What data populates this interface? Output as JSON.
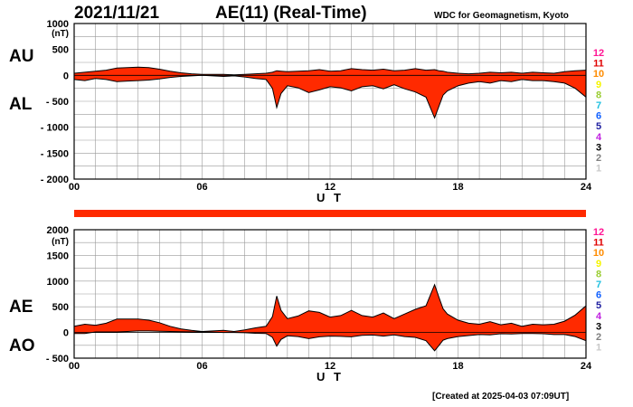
{
  "header": {
    "date": "2021/11/21",
    "title": "AE(11) (Real-Time)",
    "org": "WDC for Geomagnetism, Kyoto"
  },
  "footer": {
    "created": "[Created at 2025-04-03 07:09UT]"
  },
  "colors": {
    "fill": "#ff2a00",
    "line": "#000000",
    "grid": "#999999"
  },
  "station_legend": [
    {
      "n": "12",
      "color": "#ff1493"
    },
    {
      "n": "11",
      "color": "#e00000"
    },
    {
      "n": "10",
      "color": "#ff8c00"
    },
    {
      "n": "9",
      "color": "#f5f500"
    },
    {
      "n": "8",
      "color": "#9acd32"
    },
    {
      "n": "7",
      "color": "#20c0e0"
    },
    {
      "n": "6",
      "color": "#1060ff"
    },
    {
      "n": "5",
      "color": "#2020a0"
    },
    {
      "n": "4",
      "color": "#c020e0"
    },
    {
      "n": "3",
      "color": "#000000"
    },
    {
      "n": "2",
      "color": "#808080"
    },
    {
      "n": "1",
      "color": "#c8c8c8"
    }
  ],
  "chart_data": [
    {
      "type": "area",
      "series_labels": [
        "AU",
        "AL"
      ],
      "ylabel": "(nT)",
      "xlabel": "U T",
      "x_ticks": [
        "00",
        "06",
        "12",
        "18",
        "24"
      ],
      "x_range": [
        0,
        24
      ],
      "ylim": [
        -2000,
        1000
      ],
      "y_ticks": [
        1000,
        500,
        0,
        -500,
        -1000,
        -1500,
        -2000
      ],
      "y_tick_labels": [
        "1000",
        "500",
        "0",
        "- 500",
        "- 1000",
        "- 1500",
        "- 2000"
      ],
      "grid": true,
      "x": [
        0,
        0.5,
        1,
        1.5,
        2,
        2.5,
        3,
        3.5,
        4,
        4.5,
        5,
        5.5,
        6,
        6.5,
        7,
        7.5,
        8,
        8.5,
        9,
        9.3,
        9.5,
        9.7,
        10,
        10.5,
        11,
        11.5,
        12,
        12.5,
        13,
        13.5,
        14,
        14.5,
        15,
        15.5,
        16,
        16.5,
        16.9,
        17.1,
        17.3,
        17.5,
        18,
        18.5,
        19,
        19.5,
        20,
        20.5,
        21,
        21.5,
        22,
        22.5,
        23,
        23.5,
        24
      ],
      "AU": [
        40,
        60,
        80,
        100,
        140,
        150,
        160,
        150,
        120,
        80,
        50,
        30,
        20,
        20,
        20,
        10,
        20,
        30,
        40,
        60,
        90,
        80,
        70,
        80,
        90,
        110,
        80,
        90,
        130,
        110,
        100,
        120,
        90,
        100,
        130,
        100,
        110,
        90,
        80,
        60,
        40,
        30,
        40,
        60,
        50,
        60,
        40,
        60,
        50,
        40,
        70,
        90,
        100
      ],
      "AL": [
        -80,
        -100,
        -60,
        -80,
        -120,
        -110,
        -100,
        -90,
        -70,
        -40,
        -20,
        -10,
        0,
        -10,
        -20,
        -10,
        -30,
        -60,
        -80,
        -250,
        -620,
        -350,
        -200,
        -240,
        -330,
        -280,
        -220,
        -240,
        -300,
        -220,
        -200,
        -260,
        -180,
        -260,
        -320,
        -420,
        -820,
        -600,
        -380,
        -300,
        -200,
        -150,
        -120,
        -150,
        -100,
        -120,
        -80,
        -100,
        -100,
        -120,
        -150,
        -250,
        -420
      ]
    },
    {
      "type": "area",
      "series_labels": [
        "AE",
        "AO"
      ],
      "ylabel": "(nT)",
      "xlabel": "U T",
      "x_ticks": [
        "00",
        "06",
        "12",
        "18",
        "24"
      ],
      "x_range": [
        0,
        24
      ],
      "ylim": [
        -500,
        2000
      ],
      "y_ticks": [
        2000,
        1500,
        1000,
        500,
        0,
        -500
      ],
      "y_tick_labels": [
        "2000",
        "1500",
        "1000",
        "500",
        "0",
        "- 500"
      ],
      "grid": true,
      "x": [
        0,
        0.5,
        1,
        1.5,
        2,
        2.5,
        3,
        3.5,
        4,
        4.5,
        5,
        5.5,
        6,
        6.5,
        7,
        7.5,
        8,
        8.5,
        9,
        9.3,
        9.5,
        9.7,
        10,
        10.5,
        11,
        11.5,
        12,
        12.5,
        13,
        13.5,
        14,
        14.5,
        15,
        15.5,
        16,
        16.5,
        16.9,
        17.1,
        17.3,
        17.5,
        18,
        18.5,
        19,
        19.5,
        20,
        20.5,
        21,
        21.5,
        22,
        22.5,
        23,
        23.5,
        24
      ],
      "AE": [
        120,
        160,
        140,
        180,
        260,
        260,
        260,
        240,
        190,
        120,
        70,
        40,
        20,
        30,
        40,
        20,
        50,
        90,
        120,
        310,
        710,
        430,
        270,
        320,
        420,
        390,
        300,
        330,
        430,
        330,
        300,
        380,
        270,
        360,
        450,
        520,
        930,
        690,
        460,
        360,
        240,
        180,
        160,
        210,
        150,
        180,
        120,
        160,
        150,
        160,
        220,
        340,
        520
      ],
      "AO": [
        -20,
        -20,
        10,
        10,
        10,
        20,
        30,
        30,
        25,
        20,
        15,
        10,
        10,
        5,
        0,
        0,
        -5,
        -15,
        -20,
        -95,
        -265,
        -135,
        -65,
        -80,
        -120,
        -85,
        -70,
        -75,
        -85,
        -55,
        -50,
        -70,
        -45,
        -80,
        -95,
        -160,
        -355,
        -255,
        -150,
        -120,
        -80,
        -60,
        -40,
        -45,
        -25,
        -30,
        -20,
        -20,
        -25,
        -40,
        -40,
        -80,
        -160
      ]
    }
  ]
}
